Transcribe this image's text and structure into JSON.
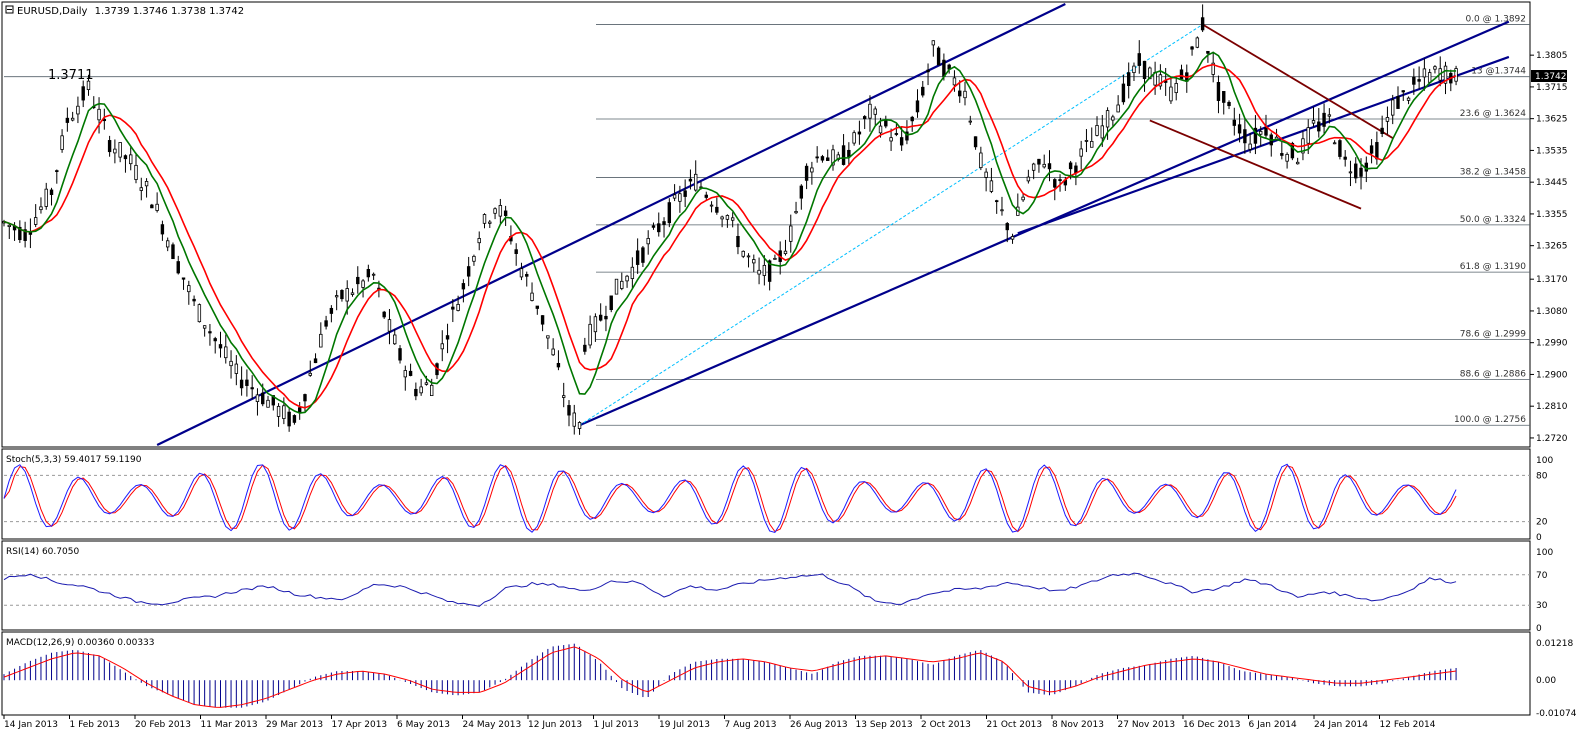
{
  "chart_data": {
    "type": "candlestick",
    "title": "EURUSD,Daily",
    "ohlc_header": "1.3739 1.3746 1.3738 1.3742",
    "current_price_label": "1.3742",
    "price_marker_label": "1.3711",
    "ylim": [
      1.27,
      1.395
    ],
    "price_ticks": [
      "1.3805",
      "1.3715",
      "1.3625",
      "1.3535",
      "1.3445",
      "1.3355",
      "1.3265",
      "1.3170",
      "1.3080",
      "1.2990",
      "1.2900",
      "1.2810",
      "1.2720"
    ],
    "price_tick_values": [
      1.3805,
      1.3715,
      1.3625,
      1.3535,
      1.3445,
      1.3355,
      1.3265,
      1.317,
      1.308,
      1.299,
      1.29,
      1.281,
      1.272
    ],
    "x_dates": [
      "14 Jan 2013",
      "1 Feb 2013",
      "20 Feb 2013",
      "11 Mar 2013",
      "29 Mar 2013",
      "17 Apr 2013",
      "6 May 2013",
      "24 May 2013",
      "12 Jun 2013",
      "1 Jul 2013",
      "19 Jul 2013",
      "7 Aug 2013",
      "26 Aug 2013",
      "13 Sep 2013",
      "2 Oct 2013",
      "21 Oct 2013",
      "8 Nov 2013",
      "27 Nov 2013",
      "16 Dec 2013",
      "6 Jan 2014",
      "24 Jan 2014",
      "12 Feb 2014"
    ],
    "price_path": [
      [
        0,
        1.333
      ],
      [
        4,
        1.33
      ],
      [
        9,
        1.342
      ],
      [
        12,
        1.362
      ],
      [
        16,
        1.3711
      ],
      [
        20,
        1.356
      ],
      [
        24,
        1.35
      ],
      [
        28,
        1.34
      ],
      [
        32,
        1.325
      ],
      [
        36,
        1.31
      ],
      [
        40,
        1.3
      ],
      [
        44,
        1.29
      ],
      [
        48,
        1.285
      ],
      [
        52,
        1.28
      ],
      [
        55,
        1.276
      ],
      [
        58,
        1.29
      ],
      [
        61,
        1.305
      ],
      [
        64,
        1.312
      ],
      [
        67,
        1.315
      ],
      [
        70,
        1.318
      ],
      [
        72,
        1.307
      ],
      [
        75,
        1.295
      ],
      [
        78,
        1.286
      ],
      [
        81,
        1.287
      ],
      [
        84,
        1.303
      ],
      [
        87,
        1.315
      ],
      [
        90,
        1.33
      ],
      [
        93,
        1.338
      ],
      [
        95,
        1.334
      ],
      [
        98,
        1.32
      ],
      [
        101,
        1.31
      ],
      [
        104,
        1.296
      ],
      [
        107,
        1.279
      ],
      [
        109,
        1.2756
      ],
      [
        110,
        1.299
      ],
      [
        113,
        1.306
      ],
      [
        116,
        1.314
      ],
      [
        119,
        1.32
      ],
      [
        122,
        1.327
      ],
      [
        125,
        1.334
      ],
      [
        128,
        1.34
      ],
      [
        131,
        1.345
      ],
      [
        134,
        1.34
      ],
      [
        137,
        1.335
      ],
      [
        140,
        1.325
      ],
      [
        143,
        1.318
      ],
      [
        146,
        1.32
      ],
      [
        149,
        1.33
      ],
      [
        152,
        1.348
      ],
      [
        155,
        1.353
      ],
      [
        158,
        1.35
      ],
      [
        161,
        1.356
      ],
      [
        164,
        1.364
      ],
      [
        167,
        1.36
      ],
      [
        170,
        1.355
      ],
      [
        173,
        1.365
      ],
      [
        176,
        1.382
      ],
      [
        179,
        1.375
      ],
      [
        182,
        1.37
      ],
      [
        185,
        1.35
      ],
      [
        188,
        1.338
      ],
      [
        191,
        1.33
      ],
      [
        194,
        1.345
      ],
      [
        197,
        1.351
      ],
      [
        200,
        1.343
      ],
      [
        203,
        1.35
      ],
      [
        206,
        1.356
      ],
      [
        209,
        1.362
      ],
      [
        212,
        1.37
      ],
      [
        215,
        1.378
      ],
      [
        218,
        1.374
      ],
      [
        221,
        1.37
      ],
      [
        224,
        1.376
      ],
      [
        227,
        1.3892
      ],
      [
        230,
        1.37
      ],
      [
        233,
        1.362
      ],
      [
        236,
        1.356
      ],
      [
        239,
        1.36
      ],
      [
        242,
        1.354
      ],
      [
        245,
        1.352
      ],
      [
        248,
        1.36
      ],
      [
        251,
        1.362
      ],
      [
        254,
        1.35
      ],
      [
        257,
        1.348
      ],
      [
        260,
        1.354
      ],
      [
        263,
        1.366
      ],
      [
        266,
        1.37
      ],
      [
        269,
        1.374
      ],
      [
        272,
        1.376
      ],
      [
        275,
        1.3742
      ]
    ],
    "fibonacci": [
      {
        "label": "0.0 @ 1.3892",
        "value": 1.3892
      },
      {
        "label": "13 @1.3744",
        "value": 1.3744
      },
      {
        "label": "23.6 @ 1.3624",
        "value": 1.3624
      },
      {
        "label": "38.2 @ 1.3458",
        "value": 1.3458
      },
      {
        "label": "50.0 @ 1.3324",
        "value": 1.3324
      },
      {
        "label": "61.8 @ 1.3190",
        "value": 1.319
      },
      {
        "label": "78.6 @ 1.2999",
        "value": 1.2999
      },
      {
        "label": "88.6 @ 1.2886",
        "value": 1.2886
      },
      {
        "label": "100.0 @ 1.2756",
        "value": 1.2756
      }
    ],
    "channel_lines": [
      {
        "color": "#00008b",
        "from": [
          29,
          1.27
        ],
        "to": [
          201,
          1.395
        ]
      },
      {
        "color": "#00008b",
        "from": [
          109,
          1.2756
        ],
        "to": [
          285,
          1.39
        ]
      },
      {
        "color": "#00008b",
        "from": [
          192,
          1.33
        ],
        "to": [
          285,
          1.38
        ]
      }
    ],
    "descending_channel": [
      {
        "color": "#7b0000",
        "from": [
          227,
          1.3892
        ],
        "to": [
          263,
          1.357
        ]
      },
      {
        "color": "#7b0000",
        "from": [
          217,
          1.362
        ],
        "to": [
          257,
          1.337
        ]
      }
    ],
    "fib_diagonal": {
      "color": "#00bfff",
      "from": [
        109,
        1.2756
      ],
      "to": [
        227,
        1.3892
      ]
    },
    "stochastic": {
      "label": "Stoch(5,3,3) 59.4017 59.1190",
      "ticks": [
        "100",
        "80",
        "20",
        "0"
      ],
      "tick_values": [
        100,
        80,
        20,
        0
      ],
      "levels": [
        80,
        20
      ]
    },
    "rsi": {
      "label": "RSI(14) 60.7050",
      "ticks": [
        "100",
        "70",
        "30",
        "0"
      ],
      "tick_values": [
        100,
        70,
        30,
        0
      ],
      "levels": [
        70,
        30
      ],
      "values": [
        65,
        72,
        60,
        55,
        45,
        35,
        32,
        38,
        42,
        50,
        55,
        45,
        40,
        38,
        58,
        55,
        45,
        33,
        30,
        52,
        58,
        56,
        48,
        62,
        60,
        42,
        55,
        50,
        58,
        64,
        68,
        70,
        55,
        35,
        32,
        45,
        50,
        52,
        60,
        54,
        48,
        58,
        70,
        72,
        60,
        48,
        52,
        64,
        56,
        40,
        48,
        42,
        36,
        46,
        65,
        60
      ]
    },
    "macd": {
      "label": "MACD(12,26,9) 0.00360 0.00333",
      "ticks": [
        "0.01218",
        "0.00",
        "-0.01074"
      ],
      "tick_values": [
        0.01218,
        0,
        -0.01074
      ],
      "hist": [
        0.002,
        0.006,
        0.009,
        0.01,
        0.008,
        0.003,
        -0.002,
        -0.005,
        -0.008,
        -0.009,
        -0.009,
        -0.007,
        -0.003,
        0.001,
        0.003,
        0.003,
        0.002,
        -0.001,
        -0.004,
        -0.005,
        -0.004,
        0.0,
        0.006,
        0.011,
        0.012,
        0.006,
        -0.003,
        -0.006,
        0.002,
        0.006,
        0.007,
        0.007,
        0.006,
        0.004,
        0.002,
        0.006,
        0.008,
        0.008,
        0.007,
        0.005,
        0.008,
        0.01,
        0.006,
        -0.004,
        -0.005,
        -0.002,
        0.002,
        0.004,
        0.005,
        0.007,
        0.008,
        0.006,
        0.003,
        0.002,
        0.001,
        -0.001,
        -0.002,
        -0.002,
        -0.001,
        0.001,
        0.003,
        0.004
      ],
      "signal": [
        0.001,
        0.004,
        0.007,
        0.009,
        0.008,
        0.004,
        -0.001,
        -0.005,
        -0.008,
        -0.009,
        -0.008,
        -0.006,
        -0.003,
        0.0,
        0.002,
        0.003,
        0.002,
        0.0,
        -0.003,
        -0.004,
        -0.004,
        -0.001,
        0.004,
        0.009,
        0.011,
        0.007,
        0.0,
        -0.004,
        0.0,
        0.004,
        0.006,
        0.007,
        0.006,
        0.004,
        0.003,
        0.005,
        0.007,
        0.008,
        0.007,
        0.006,
        0.007,
        0.009,
        0.006,
        -0.002,
        -0.004,
        -0.002,
        0.001,
        0.003,
        0.005,
        0.006,
        0.007,
        0.006,
        0.004,
        0.002,
        0.001,
        0.0,
        -0.001,
        -0.001,
        0.0,
        0.001,
        0.002,
        0.003
      ]
    },
    "colors": {
      "up_candle": "#000000",
      "down_candle": "#000000",
      "ma_fast": "#ff0000",
      "ma_slow": "#007700",
      "stoch_main": "#1c1cff",
      "stoch_signal": "#ff0000",
      "rsi_line": "#1c1cb0",
      "macd_hist": "#00008b",
      "macd_signal": "#ff0000",
      "price_tag_bg": "#000000",
      "price_tag_fg": "#ffffff"
    }
  }
}
